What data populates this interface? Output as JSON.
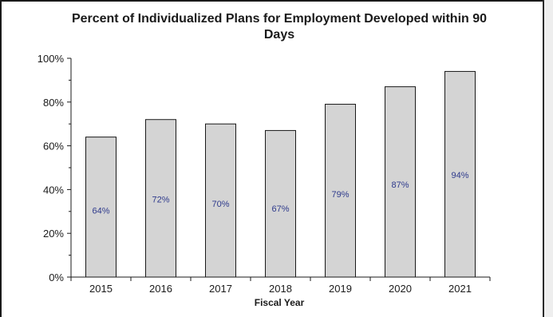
{
  "chart_data": {
    "type": "bar",
    "title_line1": "Percent of Individualized Plans for Employment Developed within 90",
    "title_line2": "Days",
    "xlabel": "Fiscal Year",
    "ylabel": "",
    "categories": [
      "2015",
      "2016",
      "2017",
      "2018",
      "2019",
      "2020",
      "2021"
    ],
    "values": [
      64,
      72,
      70,
      67,
      79,
      87,
      94
    ],
    "data_labels": [
      "64%",
      "72%",
      "70%",
      "67%",
      "79%",
      "87%",
      "94%"
    ],
    "ylim": [
      0,
      100
    ],
    "yticks": [
      0,
      20,
      40,
      60,
      80,
      100
    ],
    "ytick_labels": [
      "0%",
      "20%",
      "40%",
      "60%",
      "80%",
      "100%"
    ],
    "grid": false,
    "legend": "none",
    "colors": {
      "bar_fill": "#d4d4d4",
      "bar_stroke": "#1a1a1a",
      "data_label": "#2e3a8c"
    }
  }
}
